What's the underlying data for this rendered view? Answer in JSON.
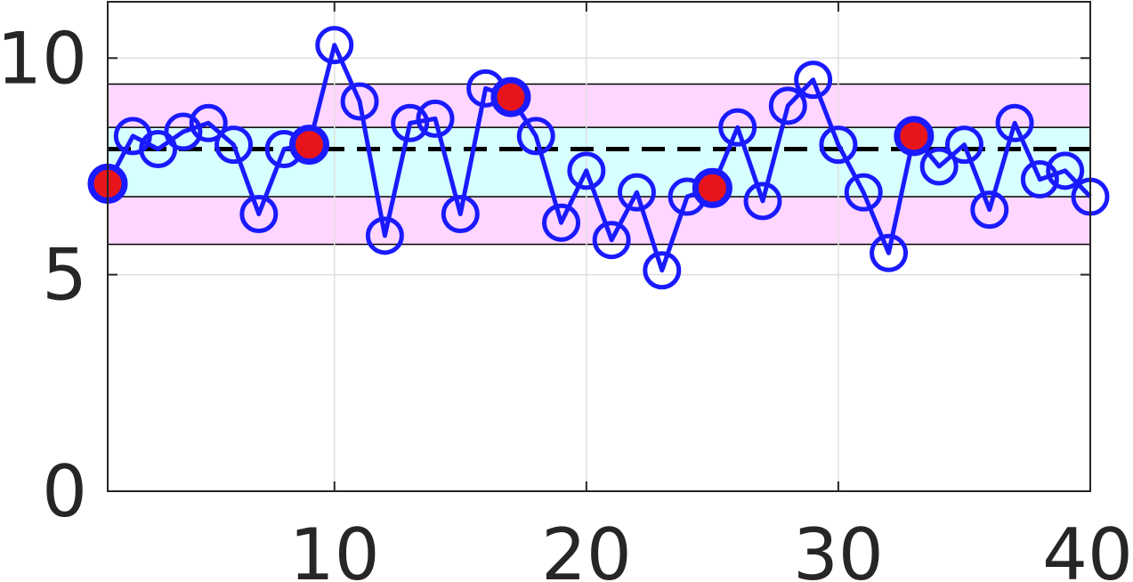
{
  "chart_data": {
    "type": "line",
    "title": "",
    "xlabel": "",
    "ylabel": "",
    "xlim": [
      1,
      40
    ],
    "ylim": [
      0,
      11.3
    ],
    "xticks": [
      "10",
      "20",
      "30",
      "40"
    ],
    "yticks": [
      "0",
      "5",
      "10"
    ],
    "grid": true,
    "bands": [
      {
        "from": 5.7,
        "to": 9.4,
        "color": "#ffd6ff"
      },
      {
        "from": 6.8,
        "to": 8.4,
        "color": "#d6ffff"
      }
    ],
    "reference_line": {
      "y": 7.9,
      "style": "dashed",
      "color": "#000000"
    },
    "series": [
      {
        "color": "#1a1aff",
        "marker": "open-circle",
        "x": [
          1,
          2,
          3,
          4,
          5,
          6,
          7,
          8,
          9,
          10,
          11,
          12,
          13,
          14,
          15,
          16,
          17,
          18,
          19,
          20,
          21,
          22,
          23,
          24,
          25,
          26,
          27,
          28,
          29,
          30,
          31,
          32,
          33,
          34,
          35,
          36,
          37,
          38,
          39,
          40
        ],
        "y": [
          7.1,
          8.2,
          7.9,
          8.3,
          8.5,
          8.0,
          6.4,
          7.9,
          8.0,
          10.3,
          9.0,
          5.9,
          8.5,
          8.6,
          6.4,
          9.3,
          9.1,
          8.2,
          6.2,
          7.4,
          5.8,
          6.9,
          5.1,
          6.8,
          7.0,
          8.4,
          6.7,
          8.9,
          9.5,
          8.0,
          6.9,
          5.5,
          8.2,
          7.5,
          8.0,
          6.5,
          8.5,
          7.2,
          7.4,
          6.8
        ]
      }
    ],
    "highlighted_points": {
      "x": [
        1,
        9,
        17,
        25,
        33
      ],
      "fill": "#e8141c",
      "edge": "#1a1aff"
    }
  }
}
